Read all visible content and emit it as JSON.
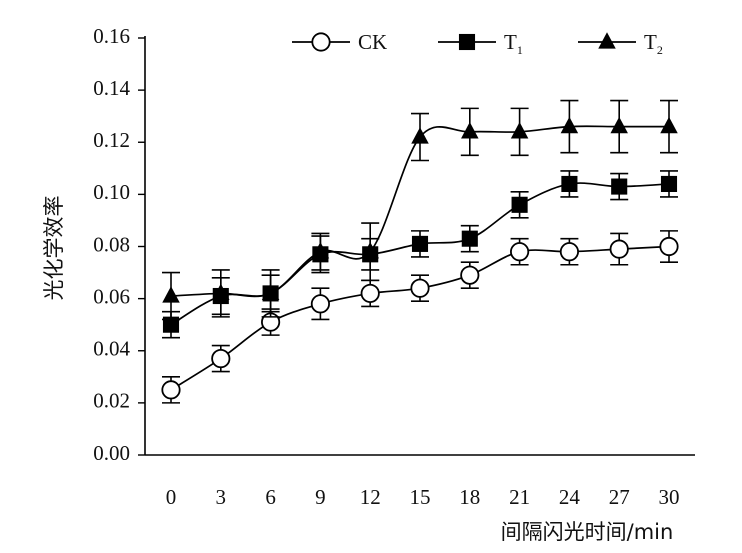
{
  "chart_data": {
    "type": "line",
    "xlabel": "间隔闪光时间/min",
    "ylabel": "光化学效率",
    "x": [
      0,
      3,
      6,
      9,
      12,
      15,
      18,
      21,
      24,
      27,
      30
    ],
    "x_tick_labels": [
      "0",
      "3",
      "6",
      "9",
      "12",
      "15",
      "18",
      "21",
      "24",
      "27",
      "30"
    ],
    "ylim": [
      0,
      0.16
    ],
    "y_ticks": [
      0.0,
      0.02,
      0.04,
      0.06,
      0.08,
      0.1,
      0.12,
      0.14,
      0.16
    ],
    "y_tick_labels": [
      "0.00",
      "0.02",
      "0.04",
      "0.06",
      "0.08",
      "0.10",
      "0.12",
      "0.14",
      "0.16"
    ],
    "grid": false,
    "legend_position": "top",
    "series": [
      {
        "name": "CK",
        "name_base": "CK",
        "name_subscript": "",
        "marker": "open-circle",
        "values": [
          0.025,
          0.037,
          0.051,
          0.058,
          0.062,
          0.064,
          0.069,
          0.078,
          0.078,
          0.079,
          0.08
        ],
        "errors": [
          0.005,
          0.005,
          0.005,
          0.006,
          0.005,
          0.005,
          0.005,
          0.005,
          0.005,
          0.006,
          0.006
        ]
      },
      {
        "name": "T1",
        "name_base": "T",
        "name_subscript": "1",
        "marker": "filled-square",
        "values": [
          0.05,
          0.061,
          0.062,
          0.077,
          0.077,
          0.081,
          0.083,
          0.096,
          0.104,
          0.103,
          0.104
        ],
        "errors": [
          0.005,
          0.007,
          0.007,
          0.007,
          0.006,
          0.005,
          0.005,
          0.005,
          0.005,
          0.005,
          0.005
        ]
      },
      {
        "name": "T2",
        "name_base": "T",
        "name_subscript": "2",
        "marker": "filled-triangle",
        "values": [
          0.061,
          0.062,
          0.062,
          0.078,
          0.078,
          0.122,
          0.124,
          0.124,
          0.126,
          0.126,
          0.126
        ],
        "errors": [
          0.009,
          0.009,
          0.009,
          0.007,
          0.011,
          0.009,
          0.009,
          0.009,
          0.01,
          0.01,
          0.01
        ]
      }
    ]
  }
}
